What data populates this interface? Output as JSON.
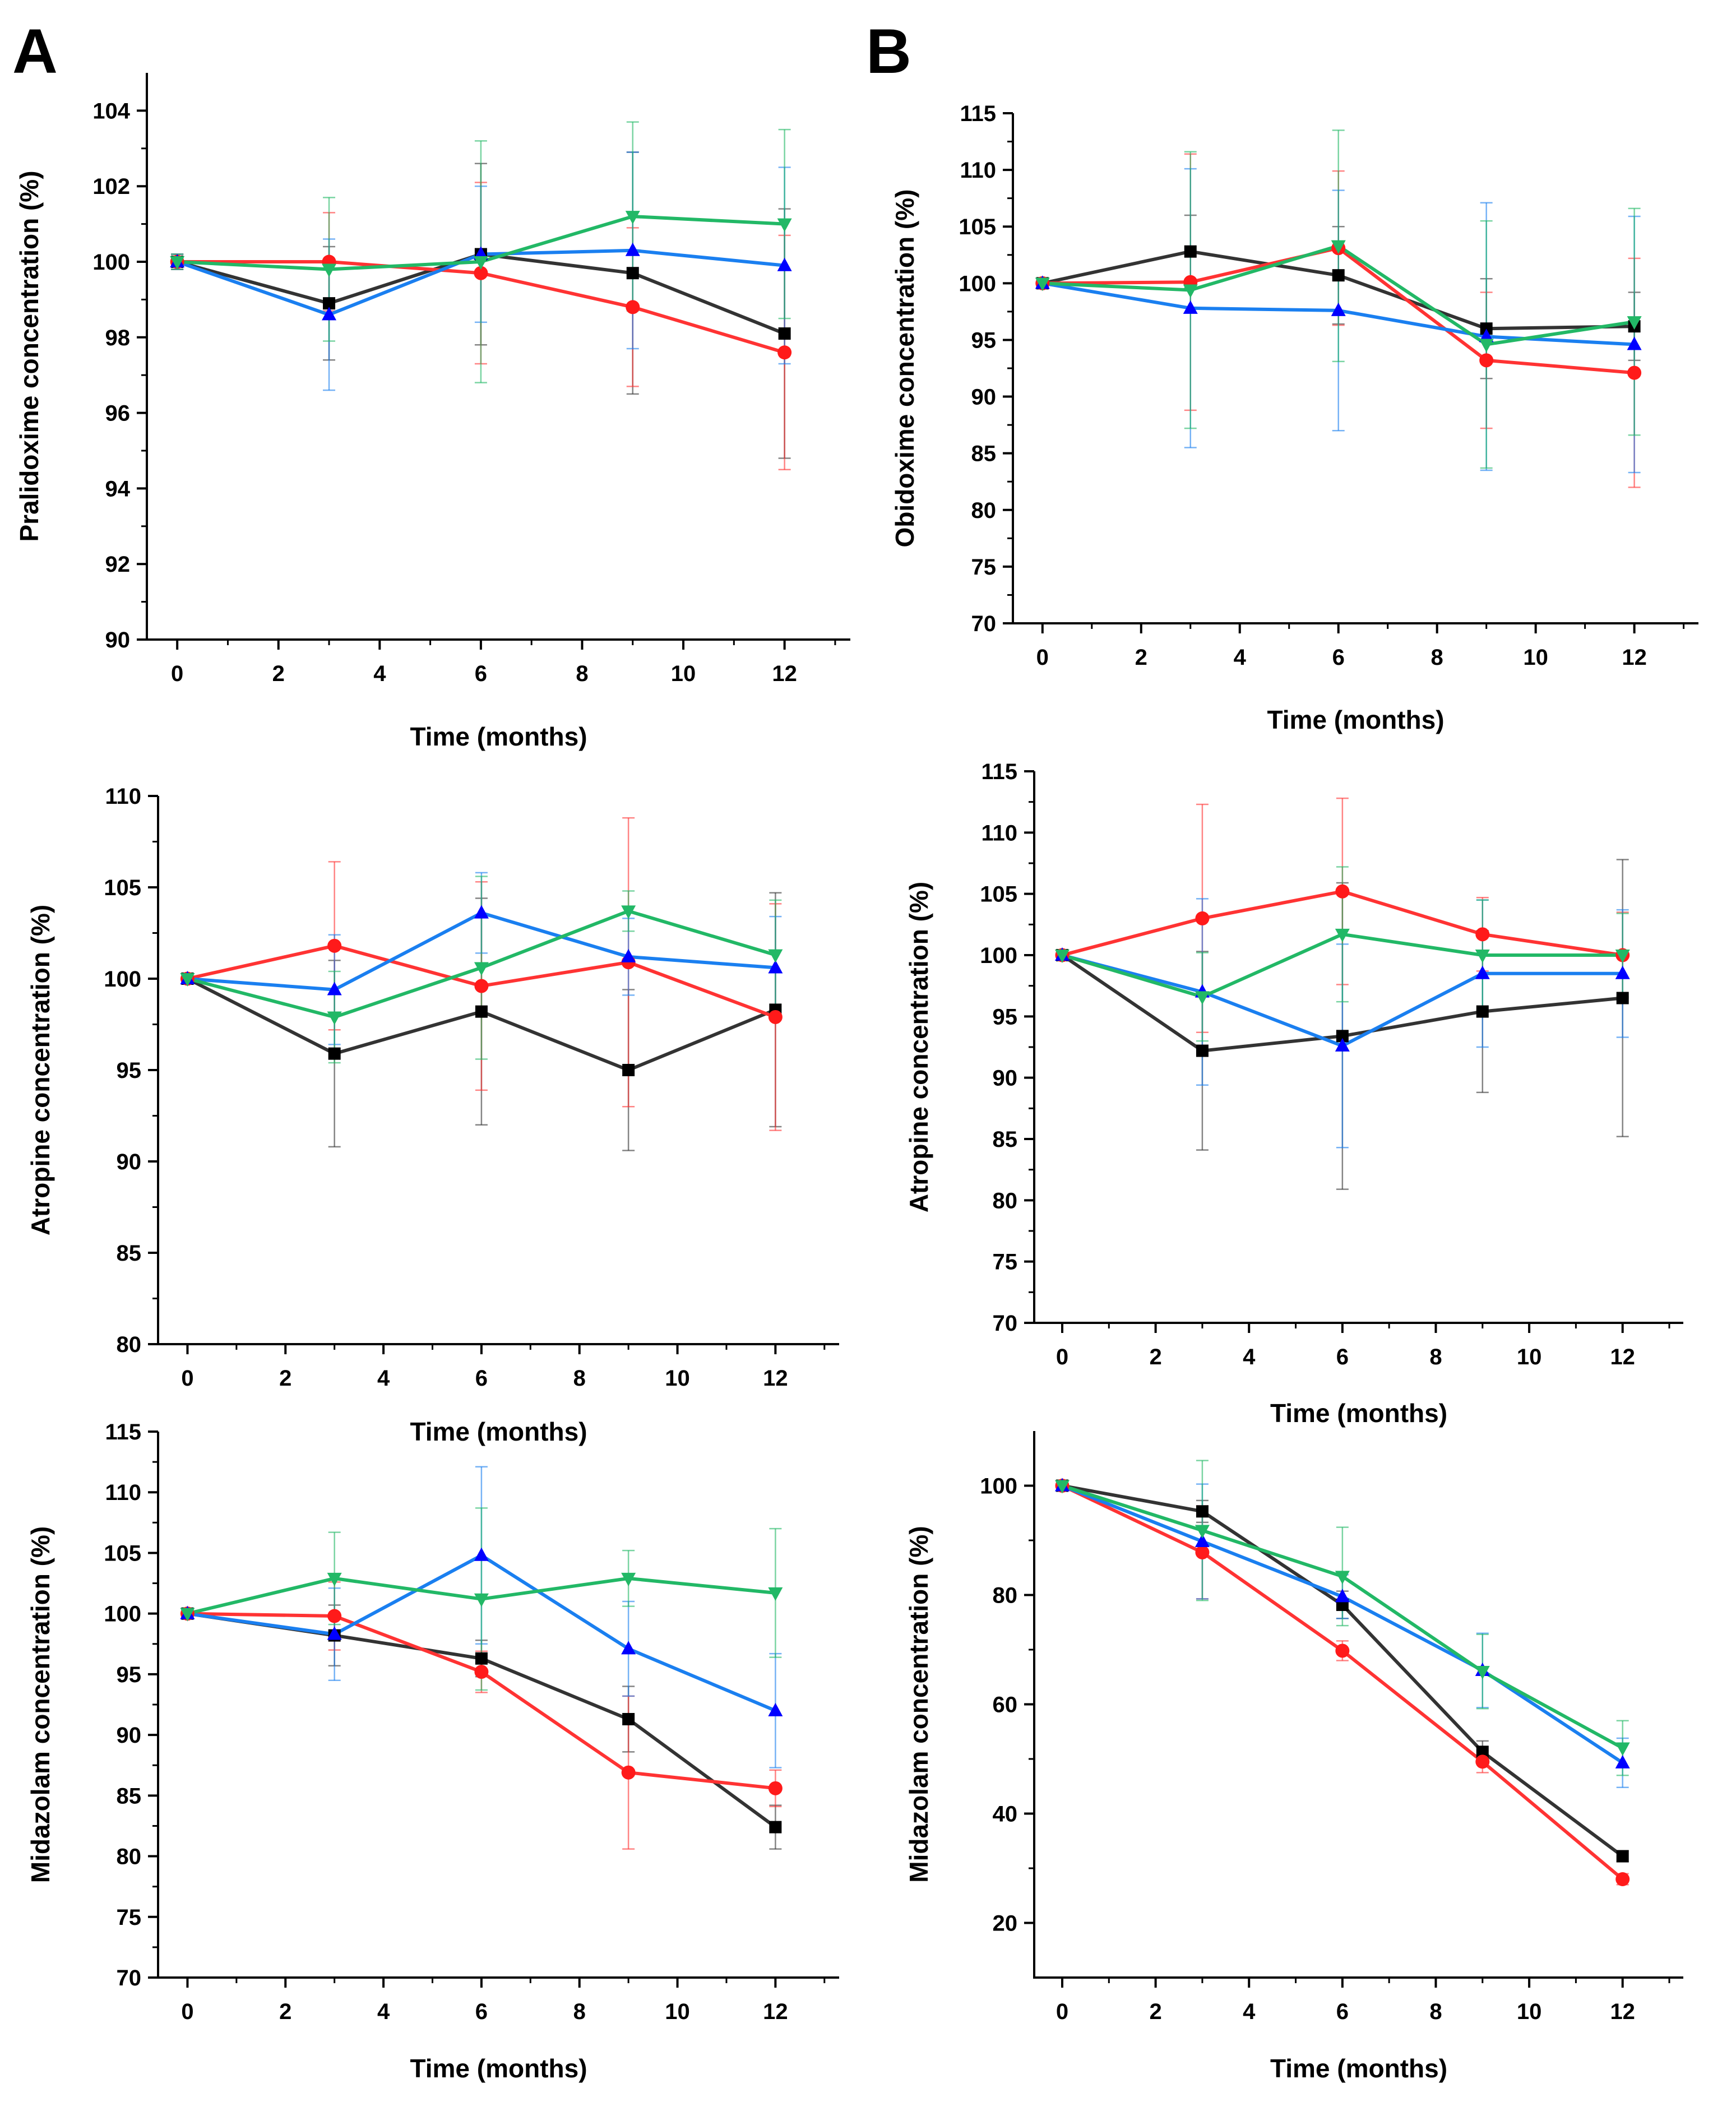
{
  "colors": {
    "black": "#333333",
    "red": "#ff3333",
    "blue": "#1a7ff0",
    "green": "#22b866",
    "black_marker": "#000000",
    "red_marker": "#ff1a1a",
    "blue_marker": "#0000ff",
    "green_marker": "#22b866"
  },
  "panel_labels": [
    "A",
    "B"
  ],
  "chart_data": [
    {
      "id": "A1",
      "type": "line",
      "panel": "A",
      "xlabel": "Time (months)",
      "ylabel": "Pralidoxime concentration (%)",
      "xlim": [
        -0.6,
        13.3
      ],
      "ylim": [
        90,
        105
      ],
      "xticks": [
        0,
        2,
        4,
        6,
        8,
        10,
        12
      ],
      "yticks": [
        90,
        92,
        94,
        96,
        98,
        100,
        102,
        104
      ],
      "x": [
        0,
        3,
        6,
        9,
        12
      ],
      "series": [
        {
          "name": "black",
          "marker": "square",
          "values": [
            100,
            98.9,
            100.2,
            99.7,
            98.1
          ],
          "errors": [
            0.2,
            1.5,
            2.4,
            3.2,
            3.3
          ]
        },
        {
          "name": "red",
          "marker": "circle",
          "values": [
            100,
            100.0,
            99.7,
            98.8,
            97.6
          ],
          "errors": [
            0.2,
            1.3,
            2.4,
            2.1,
            3.1
          ]
        },
        {
          "name": "blue",
          "marker": "triangle-up",
          "values": [
            100,
            98.6,
            100.2,
            100.3,
            99.9
          ],
          "errors": [
            0.2,
            2.0,
            1.8,
            2.6,
            2.6
          ]
        },
        {
          "name": "green",
          "marker": "triangle-down",
          "values": [
            100,
            99.8,
            100.0,
            101.2,
            101.0
          ],
          "errors": [
            0.2,
            1.9,
            3.2,
            2.5,
            2.5
          ]
        }
      ]
    },
    {
      "id": "B1",
      "type": "line",
      "panel": "B",
      "xlabel": "Time (months)",
      "ylabel": "Obidoxime concentration (%)",
      "xlim": [
        -0.6,
        13.3
      ],
      "ylim": [
        70,
        115
      ],
      "xticks": [
        0,
        2,
        4,
        6,
        8,
        10,
        12
      ],
      "yticks": [
        70,
        75,
        80,
        85,
        90,
        95,
        100,
        105,
        110,
        115
      ],
      "x": [
        0,
        3,
        6,
        9,
        12
      ],
      "series": [
        {
          "name": "black",
          "marker": "square",
          "values": [
            100,
            102.8,
            100.7,
            96.0,
            96.2
          ],
          "errors": [
            0.3,
            3.2,
            4.3,
            4.4,
            3.0
          ]
        },
        {
          "name": "red",
          "marker": "circle",
          "values": [
            100,
            100.1,
            103.1,
            93.2,
            92.1
          ],
          "errors": [
            0.3,
            11.3,
            6.8,
            6.0,
            10.1
          ]
        },
        {
          "name": "blue",
          "marker": "triangle-up",
          "values": [
            100,
            97.8,
            97.6,
            95.3,
            94.6
          ],
          "errors": [
            0.3,
            12.3,
            10.6,
            11.8,
            11.3
          ]
        },
        {
          "name": "green",
          "marker": "triangle-down",
          "values": [
            100,
            99.4,
            103.3,
            94.6,
            96.6
          ],
          "errors": [
            0.3,
            12.2,
            10.2,
            10.9,
            10.0
          ]
        }
      ]
    },
    {
      "id": "A2",
      "type": "line",
      "panel": "A",
      "xlabel": "Time (months)",
      "ylabel": "Atropine concentration (%)",
      "xlim": [
        -0.6,
        13.3
      ],
      "ylim": [
        80,
        110
      ],
      "xticks": [
        0,
        2,
        4,
        6,
        8,
        10,
        12
      ],
      "yticks": [
        80,
        85,
        90,
        95,
        100,
        105,
        110
      ],
      "x": [
        0,
        3,
        6,
        9,
        12
      ],
      "series": [
        {
          "name": "black",
          "marker": "square",
          "values": [
            100,
            95.9,
            98.2,
            95.0,
            98.3
          ],
          "errors": [
            0.3,
            5.1,
            6.2,
            4.4,
            6.4
          ]
        },
        {
          "name": "red",
          "marker": "circle",
          "values": [
            100,
            101.8,
            99.6,
            100.9,
            97.9
          ],
          "errors": [
            0.3,
            4.6,
            5.7,
            7.9,
            6.2
          ]
        },
        {
          "name": "blue",
          "marker": "triangle-up",
          "values": [
            100,
            99.4,
            103.6,
            101.2,
            100.6
          ],
          "errors": [
            0.3,
            3.0,
            2.2,
            2.1,
            2.8
          ]
        },
        {
          "name": "green",
          "marker": "triangle-down",
          "values": [
            100,
            97.9,
            100.6,
            103.7,
            101.3
          ],
          "errors": [
            0.3,
            2.5,
            5.0,
            1.1,
            3.0
          ]
        }
      ]
    },
    {
      "id": "B2",
      "type": "line",
      "panel": "B",
      "xlabel": "Time (months)",
      "ylabel": "Atropine concentration (%)",
      "xlim": [
        -0.6,
        13.3
      ],
      "ylim": [
        70,
        115
      ],
      "xticks": [
        0,
        2,
        4,
        6,
        8,
        10,
        12
      ],
      "yticks": [
        70,
        75,
        80,
        85,
        90,
        95,
        100,
        105,
        110,
        115
      ],
      "x": [
        0,
        3,
        6,
        9,
        12
      ],
      "series": [
        {
          "name": "black",
          "marker": "square",
          "values": [
            100,
            92.2,
            93.4,
            95.4,
            96.5
          ],
          "errors": [
            0.3,
            8.1,
            12.5,
            6.6,
            11.3
          ]
        },
        {
          "name": "red",
          "marker": "circle",
          "values": [
            100,
            103.0,
            105.2,
            101.7,
            100.0
          ],
          "errors": [
            0.3,
            9.3,
            7.6,
            3.0,
            3.5
          ]
        },
        {
          "name": "blue",
          "marker": "triangle-up",
          "values": [
            100,
            97.0,
            92.6,
            98.5,
            98.5
          ],
          "errors": [
            0.3,
            7.6,
            8.3,
            6.0,
            5.2
          ]
        },
        {
          "name": "green",
          "marker": "triangle-down",
          "values": [
            100,
            96.6,
            101.7,
            100.0,
            100.0
          ],
          "errors": [
            0.3,
            3.6,
            5.5,
            4.5,
            3.4
          ]
        }
      ]
    },
    {
      "id": "A3",
      "type": "line",
      "panel": "A",
      "xlabel": "Time (months)",
      "ylabel": "Midazolam concentration (%)",
      "xlim": [
        -0.6,
        13.3
      ],
      "ylim": [
        70,
        115
      ],
      "xticks": [
        0,
        2,
        4,
        6,
        8,
        10,
        12
      ],
      "yticks": [
        70,
        75,
        80,
        85,
        90,
        95,
        100,
        105,
        110,
        115
      ],
      "x": [
        0,
        3,
        6,
        9,
        12
      ],
      "series": [
        {
          "name": "black",
          "marker": "square",
          "values": [
            100,
            98.2,
            96.3,
            91.3,
            82.4
          ],
          "errors": [
            0.3,
            2.5,
            1.5,
            2.7,
            1.8
          ]
        },
        {
          "name": "red",
          "marker": "circle",
          "values": [
            100,
            99.8,
            95.2,
            86.9,
            85.6
          ],
          "errors": [
            0.3,
            2.8,
            1.7,
            6.3,
            1.5
          ]
        },
        {
          "name": "blue",
          "marker": "triangle-up",
          "values": [
            100,
            98.3,
            104.8,
            97.1,
            92.0
          ],
          "errors": [
            0.3,
            3.8,
            7.3,
            3.9,
            4.7
          ]
        },
        {
          "name": "green",
          "marker": "triangle-down",
          "values": [
            100,
            102.9,
            101.2,
            102.9,
            101.7
          ],
          "errors": [
            0.3,
            3.8,
            7.5,
            2.3,
            5.3
          ]
        }
      ]
    },
    {
      "id": "B3",
      "type": "line",
      "panel": "B",
      "xlabel": "Time (months)",
      "ylabel": "Midazolam concentration (%)",
      "xlim": [
        -0.6,
        13.3
      ],
      "ylim": [
        10,
        110
      ],
      "xticks": [
        0,
        2,
        4,
        6,
        8,
        10,
        12
      ],
      "yticks": [
        20,
        40,
        60,
        80,
        100
      ],
      "x": [
        0,
        3,
        6,
        9,
        12
      ],
      "series": [
        {
          "name": "black",
          "marker": "square",
          "values": [
            100,
            95.3,
            78.2,
            51.3,
            32.2
          ],
          "errors": [
            0.5,
            2.0,
            2.5,
            2.0,
            1.0
          ]
        },
        {
          "name": "red",
          "marker": "circle",
          "values": [
            100,
            87.8,
            69.8,
            49.5,
            28.0
          ],
          "errors": [
            0.5,
            8.5,
            1.8,
            2.0,
            1.0
          ]
        },
        {
          "name": "blue",
          "marker": "triangle-up",
          "values": [
            100,
            89.8,
            79.7,
            66.2,
            49.3
          ],
          "errors": [
            0.5,
            10.5,
            4.0,
            6.8,
            4.5
          ]
        },
        {
          "name": "green",
          "marker": "triangle-down",
          "values": [
            100,
            91.8,
            83.4,
            66.0,
            52.0
          ],
          "errors": [
            0.5,
            12.8,
            9.0,
            6.8,
            5.0
          ]
        }
      ]
    }
  ]
}
